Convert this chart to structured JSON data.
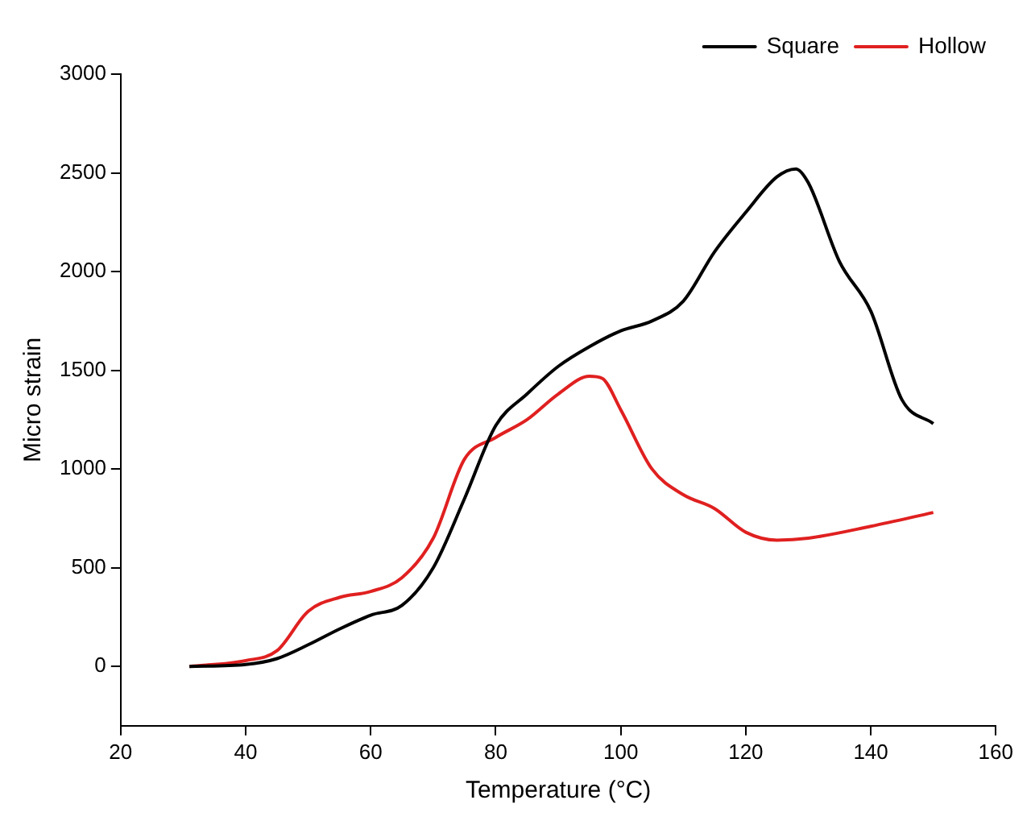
{
  "chart_data": {
    "type": "line",
    "xlabel": "Temperature (°C)",
    "ylabel": "Micro strain",
    "xlim": [
      20,
      160
    ],
    "xticks": [
      20,
      40,
      60,
      80,
      100,
      120,
      140,
      160
    ],
    "ylim": [
      -300,
      3000
    ],
    "yticks": [
      0,
      500,
      1000,
      1500,
      2000,
      2500,
      3000
    ],
    "grid": false,
    "legend": "top right",
    "marker": "none",
    "line_style": "solid",
    "series": [
      {
        "name": "Square",
        "color": "#000000",
        "x": [
          31,
          40,
          45,
          50,
          55,
          60,
          65,
          70,
          75,
          80,
          85,
          90,
          95,
          100,
          105,
          110,
          115,
          120,
          125,
          128,
          130,
          135,
          140,
          145,
          150
        ],
        "values": [
          0,
          10,
          40,
          110,
          190,
          260,
          310,
          500,
          850,
          1220,
          1380,
          1520,
          1620,
          1700,
          1750,
          1850,
          2100,
          2300,
          2480,
          2520,
          2450,
          2050,
          1800,
          1350,
          1230
        ]
      },
      {
        "name": "Hollow",
        "color": "#e02020",
        "x": [
          31,
          40,
          45,
          50,
          55,
          60,
          65,
          70,
          75,
          80,
          85,
          90,
          95,
          97,
          100,
          105,
          110,
          115,
          120,
          125,
          130,
          140,
          150
        ],
        "values": [
          0,
          30,
          80,
          280,
          350,
          380,
          450,
          650,
          1050,
          1160,
          1250,
          1380,
          1470,
          1460,
          1300,
          1000,
          870,
          800,
          680,
          640,
          650,
          710,
          780
        ]
      }
    ]
  }
}
